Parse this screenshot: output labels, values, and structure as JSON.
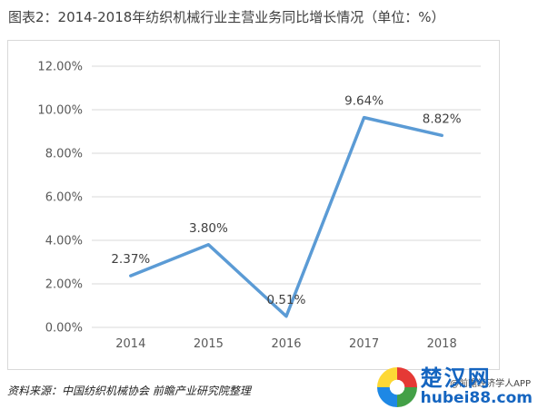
{
  "title": "图表2：2014-2018年纺织机械行业主营业务同比增长情况（单位：%）",
  "source": "资料来源：中国纺织机械协会 前瞻产业研究院整理",
  "watermark": {
    "site_name": "楚汉网",
    "site_url": "hubei88.com",
    "app_text": "@前瞻经济学人APP"
  },
  "chart_data": {
    "type": "line",
    "title": "图表2：2014-2018年纺织机械行业主营业务同比增长情况（单位：%）",
    "categories": [
      "2014",
      "2015",
      "2016",
      "2017",
      "2018"
    ],
    "series": [
      {
        "values": [
          2.37,
          3.8,
          0.51,
          9.64,
          8.82
        ],
        "labels": [
          "2.37%",
          "3.80%",
          "0.51%",
          "9.64%",
          "8.82%"
        ]
      }
    ],
    "ylim": [
      0,
      12
    ],
    "y_ticks": [
      "0.00%",
      "2.00%",
      "4.00%",
      "6.00%",
      "8.00%",
      "10.00%",
      "12.00%"
    ],
    "grid": true,
    "line_color": "#5b9bd5"
  }
}
